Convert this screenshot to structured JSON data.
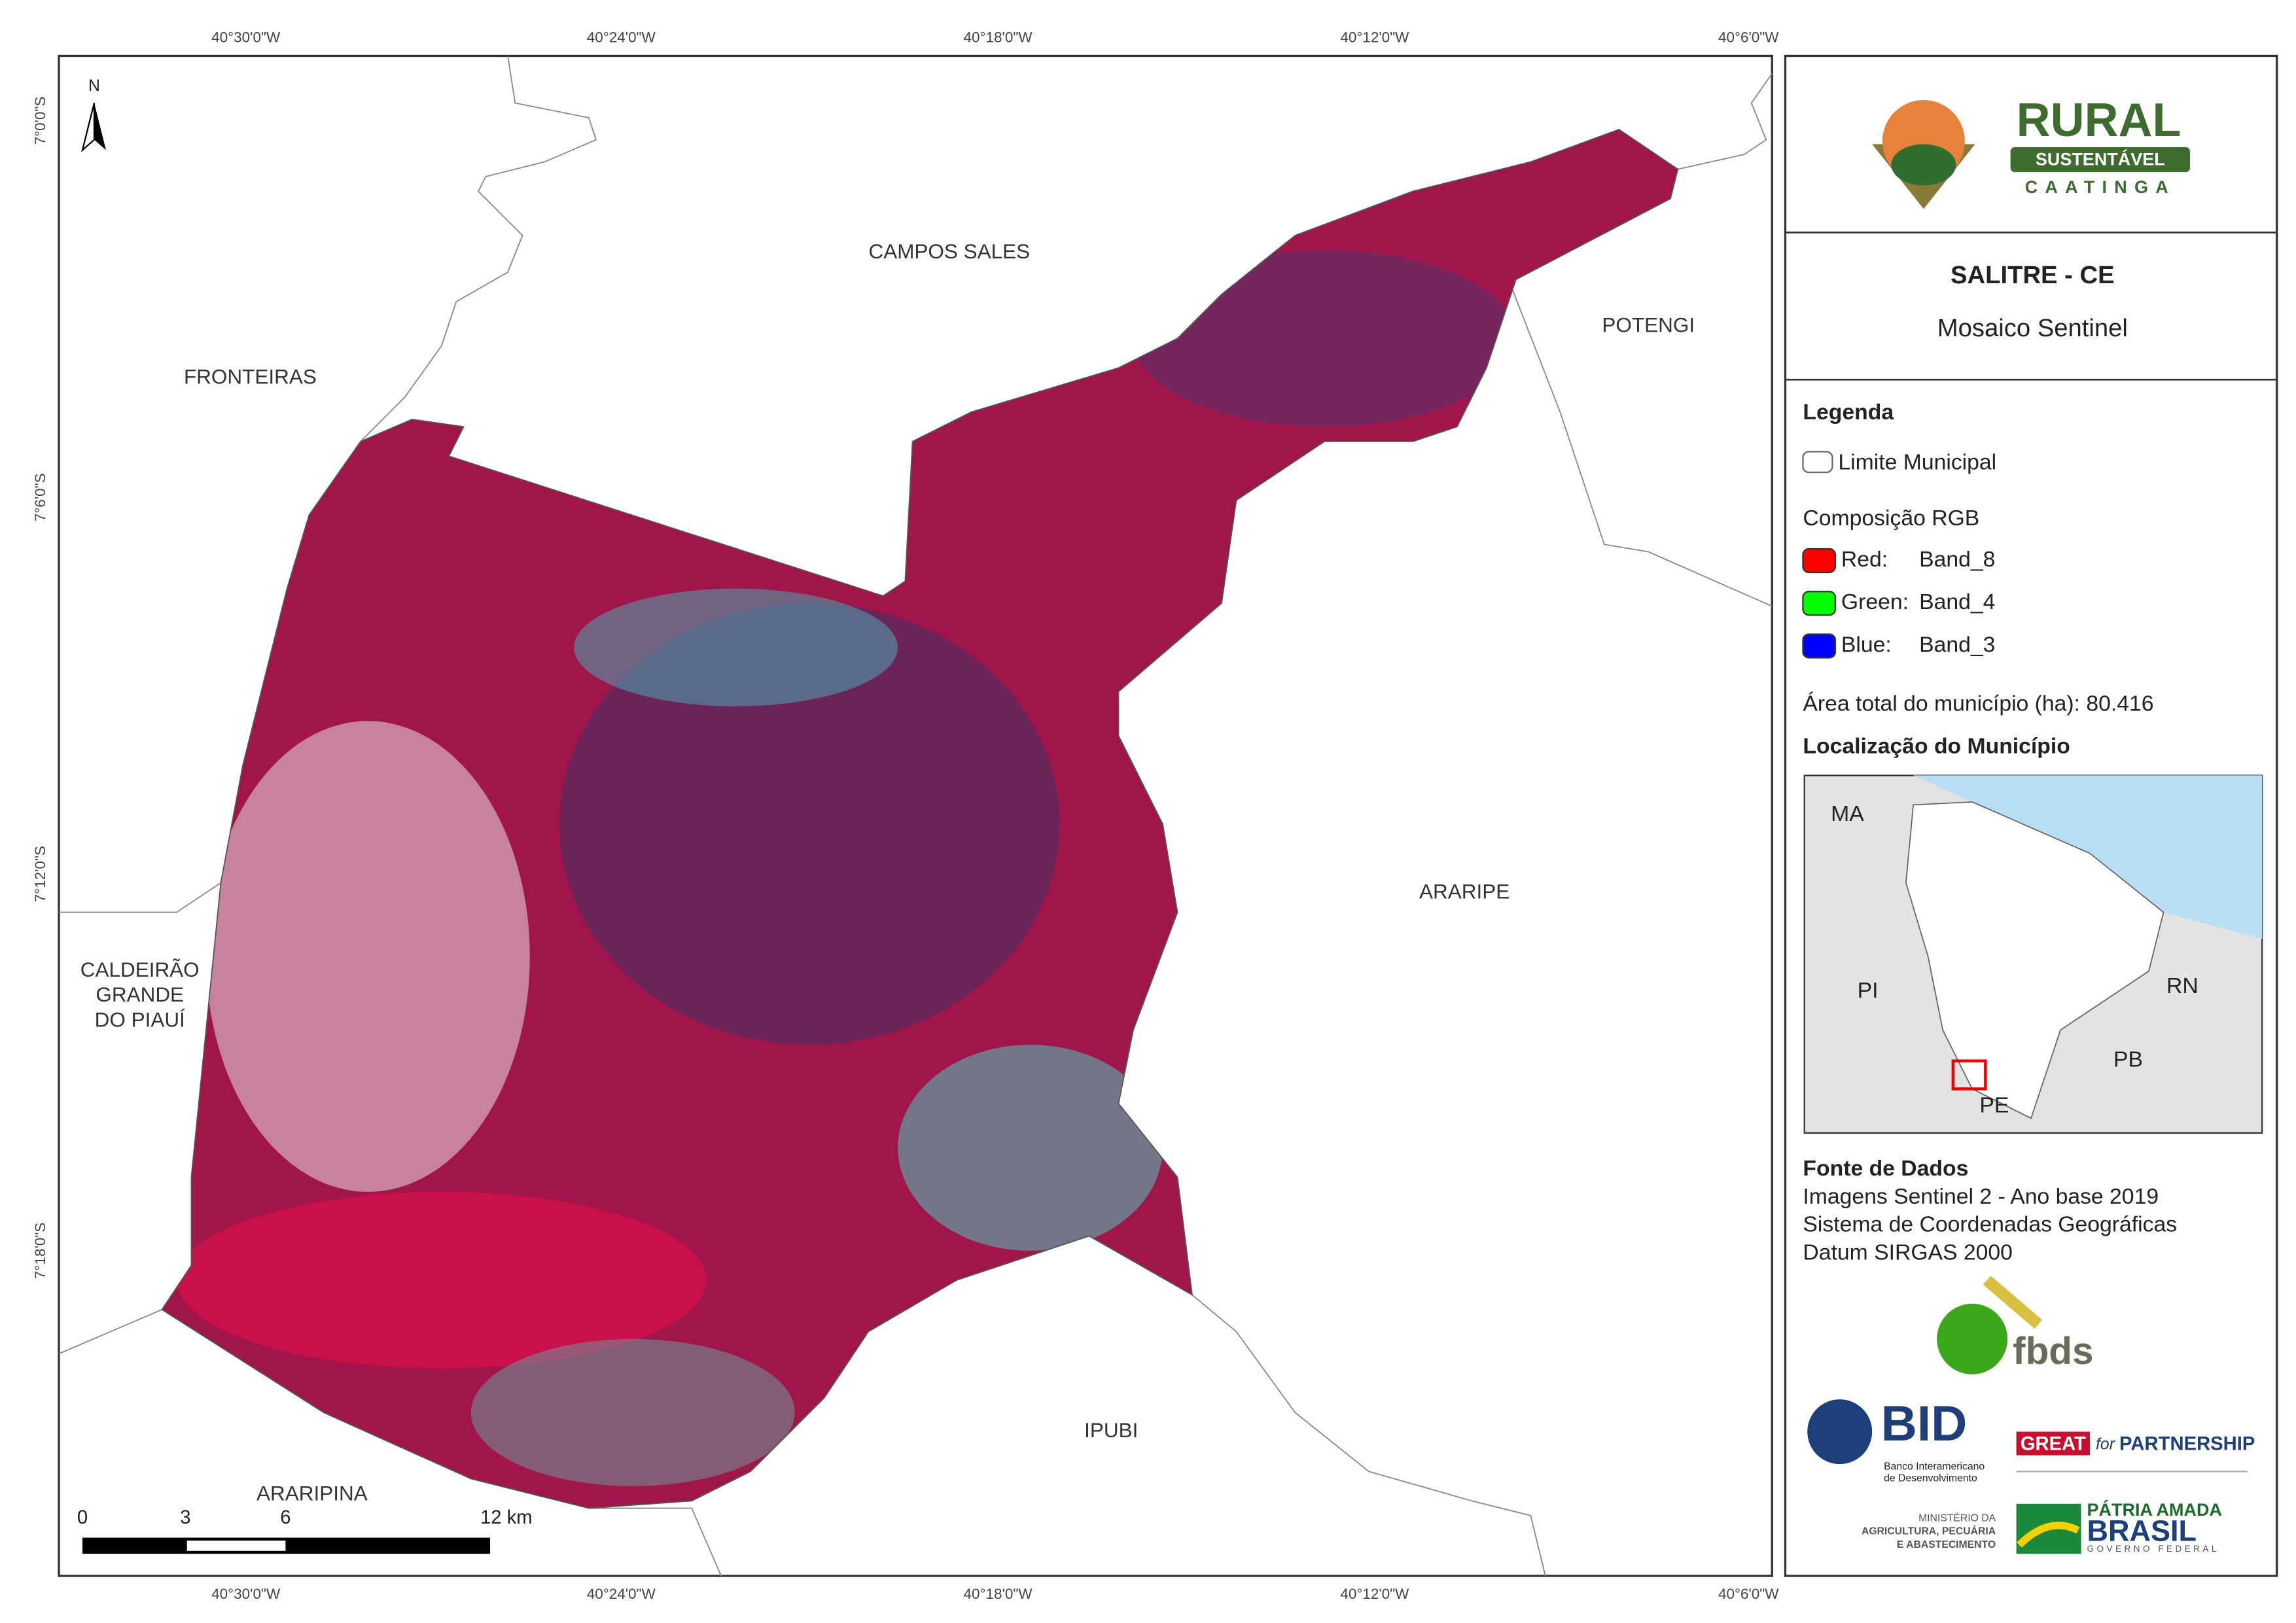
{
  "map": {
    "lon_labels": [
      "40°30'0\"W",
      "40°24'0\"W",
      "40°18'0\"W",
      "40°12'0\"W",
      "40°6'0\"W"
    ],
    "lat_labels": [
      "7°0'0\"S",
      "7°6'0\"S",
      "7°12'0\"S",
      "7°18'0\"S"
    ],
    "north": "N",
    "places": {
      "campos_sales": "CAMPOS SALES",
      "fronteiras": "FRONTEIRAS",
      "potengi": "POTENGI",
      "araripe": "ARARIPE",
      "caldeirao": [
        "CALDEIRÃO",
        "GRANDE",
        "DO PIAUÍ"
      ],
      "ipubi": "IPUBI",
      "araripina": "ARARIPINA"
    },
    "scale_bar": [
      "0",
      "3",
      "6",
      "12 km"
    ]
  },
  "panel": {
    "logo": {
      "line1": "RURAL",
      "line2": "SUSTENTÁVEL",
      "line3": "CAATINGA"
    },
    "title": "SALITRE - CE",
    "subtitle": "Mosaico Sentinel",
    "legend": {
      "heading": "Legenda",
      "boundary": "Limite Municipal",
      "composition": "Composição RGB",
      "bands": [
        {
          "channel": "Red:",
          "band": "Band_8",
          "color": "#ff0000"
        },
        {
          "channel": "Green:",
          "band": "Band_4",
          "color": "#00ff00"
        },
        {
          "channel": "Blue:",
          "band": "Band_3",
          "color": "#0000ff"
        }
      ]
    },
    "area": "Área total do município (ha): 80.416",
    "location_heading": "Localização do Município",
    "inset_labels": [
      "MA",
      "PI",
      "RN",
      "PB",
      "PE"
    ],
    "sources": {
      "heading": "Fonte de Dados",
      "lines": [
        "Imagens Sentinel 2 - Ano base 2019",
        "Sistema de Coordenadas Geográficas",
        "Datum SIRGAS 2000"
      ]
    },
    "logos": {
      "fbds": "fbds",
      "bid": "BID",
      "bid_sub": [
        "Banco Interamericano",
        "de Desenvolvimento"
      ],
      "great": "GREAT",
      "for": "for",
      "partnership": "PARTNERSHIP",
      "ministry": [
        "MINISTÉRIO DA",
        "AGRICULTURA, PECUÁRIA",
        "E ABASTECIMENTO"
      ],
      "patria": "PÁTRIA AMADA",
      "brasil": "BRASIL",
      "governo": "GOVERNO FEDERAL"
    }
  }
}
